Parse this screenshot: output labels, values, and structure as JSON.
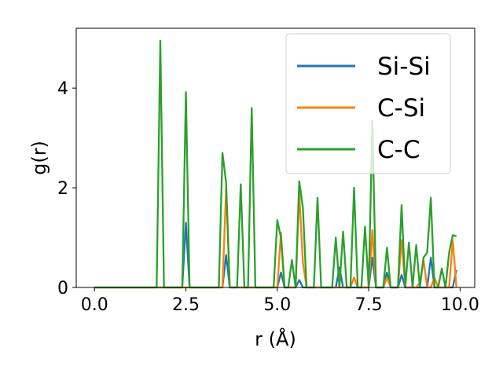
{
  "chart_data": {
    "type": "line",
    "title": "",
    "xlabel": "r (Å)",
    "ylabel": "g(r)",
    "xlim": [
      -0.5,
      10.4
    ],
    "ylim": [
      0,
      5.2
    ],
    "xticks": [
      0.0,
      2.5,
      5.0,
      7.5,
      10.0
    ],
    "xtick_labels": [
      "0.0",
      "2.5",
      "5.0",
      "7.5",
      "10.0"
    ],
    "yticks": [
      0,
      2,
      4
    ],
    "ytick_labels": [
      "0",
      "2",
      "4"
    ],
    "grid": false,
    "legend_position": "top-right",
    "x": [
      0.0,
      0.1,
      0.2,
      0.3,
      0.4,
      0.5,
      0.6,
      0.7,
      0.8,
      0.9,
      1.0,
      1.1,
      1.2,
      1.3,
      1.4,
      1.5,
      1.6,
      1.7,
      1.8,
      1.9,
      2.0,
      2.1,
      2.2,
      2.3,
      2.4,
      2.5,
      2.6,
      2.7,
      2.8,
      2.9,
      3.0,
      3.1,
      3.2,
      3.3,
      3.4,
      3.5,
      3.6,
      3.7,
      3.8,
      3.9,
      4.0,
      4.1,
      4.2,
      4.3,
      4.4,
      4.5,
      4.6,
      4.7,
      4.8,
      4.9,
      5.0,
      5.1,
      5.2,
      5.3,
      5.4,
      5.5,
      5.6,
      5.7,
      5.8,
      5.9,
      6.0,
      6.1,
      6.2,
      6.3,
      6.4,
      6.5,
      6.6,
      6.7,
      6.8,
      6.9,
      7.0,
      7.1,
      7.2,
      7.3,
      7.4,
      7.5,
      7.6,
      7.7,
      7.8,
      7.9,
      8.0,
      8.1,
      8.2,
      8.3,
      8.4,
      8.5,
      8.6,
      8.7,
      8.8,
      8.9,
      9.0,
      9.1,
      9.2,
      9.3,
      9.4,
      9.5,
      9.6,
      9.7,
      9.8,
      9.9
    ],
    "series": [
      {
        "name": "Si-Si",
        "color": "#1f77b4",
        "values": [
          0,
          0,
          0,
          0,
          0,
          0,
          0,
          0,
          0,
          0,
          0,
          0,
          0,
          0,
          0,
          0,
          0,
          0,
          0,
          0,
          0,
          0,
          0,
          0,
          0,
          1.3,
          0,
          0,
          0,
          0,
          0,
          0,
          0,
          0,
          0,
          0,
          0.65,
          0,
          0,
          0,
          0,
          0,
          0,
          0,
          0,
          0,
          0,
          0,
          0,
          0,
          0,
          0.3,
          0,
          0,
          0,
          0,
          0.15,
          0,
          0,
          0,
          0,
          0,
          0,
          0,
          0,
          0,
          0,
          0.4,
          0,
          0,
          0,
          0,
          0,
          0,
          0,
          0,
          0.6,
          0,
          0,
          0,
          0.3,
          0,
          0,
          0,
          0.25,
          0,
          0,
          0,
          0,
          0,
          0,
          0,
          0.6,
          0,
          0,
          0,
          0,
          0,
          0,
          0.35
        ]
      },
      {
        "name": "C-Si",
        "color": "#ff7f0e",
        "values": [
          0,
          0,
          0,
          0,
          0,
          0,
          0,
          0,
          0,
          0,
          0,
          0,
          0,
          0,
          0,
          0,
          0,
          0,
          0,
          0,
          0,
          0,
          0,
          0,
          0,
          0,
          0,
          0,
          0,
          0,
          0,
          0,
          0,
          0,
          0,
          0,
          2.0,
          0,
          0,
          0,
          0,
          0,
          0,
          0,
          0,
          0,
          0,
          0,
          0,
          0,
          0,
          1.1,
          0,
          0,
          0,
          0,
          1.9,
          0.5,
          0,
          0,
          0,
          0,
          0,
          0,
          0,
          0,
          0,
          0,
          0,
          0,
          0,
          0.2,
          0,
          0,
          0,
          0,
          1.15,
          0,
          0,
          0,
          0.2,
          0,
          0,
          0,
          0.95,
          0,
          0,
          0,
          0,
          0.1,
          0.55,
          0,
          0,
          0.2,
          0,
          0,
          0,
          0,
          0.95,
          0
        ]
      },
      {
        "name": "C-C",
        "color": "#2ca02c",
        "values": [
          0,
          0,
          0,
          0,
          0,
          0,
          0,
          0,
          0,
          0,
          0,
          0,
          0,
          0,
          0,
          0,
          0,
          0,
          4.95,
          0,
          0,
          0,
          0,
          0,
          0,
          3.92,
          0,
          0,
          0,
          0,
          0,
          0,
          0,
          0,
          0,
          2.7,
          2.1,
          0,
          0,
          0,
          2.07,
          0,
          0,
          3.6,
          0,
          0,
          0,
          0,
          0,
          0,
          1.35,
          1.0,
          0,
          0,
          0.55,
          0,
          2.13,
          1.6,
          0,
          0,
          0,
          1.8,
          0,
          0,
          0,
          0,
          1.0,
          0,
          1.12,
          0,
          0,
          2.0,
          0,
          0,
          1.22,
          0,
          3.35,
          0,
          0,
          0,
          0.8,
          0,
          0,
          0,
          1.65,
          0,
          0.9,
          0,
          0.85,
          0,
          0.6,
          0.7,
          1.8,
          0,
          0,
          0.38,
          0,
          0.7,
          1.05,
          1.03
        ]
      }
    ]
  }
}
